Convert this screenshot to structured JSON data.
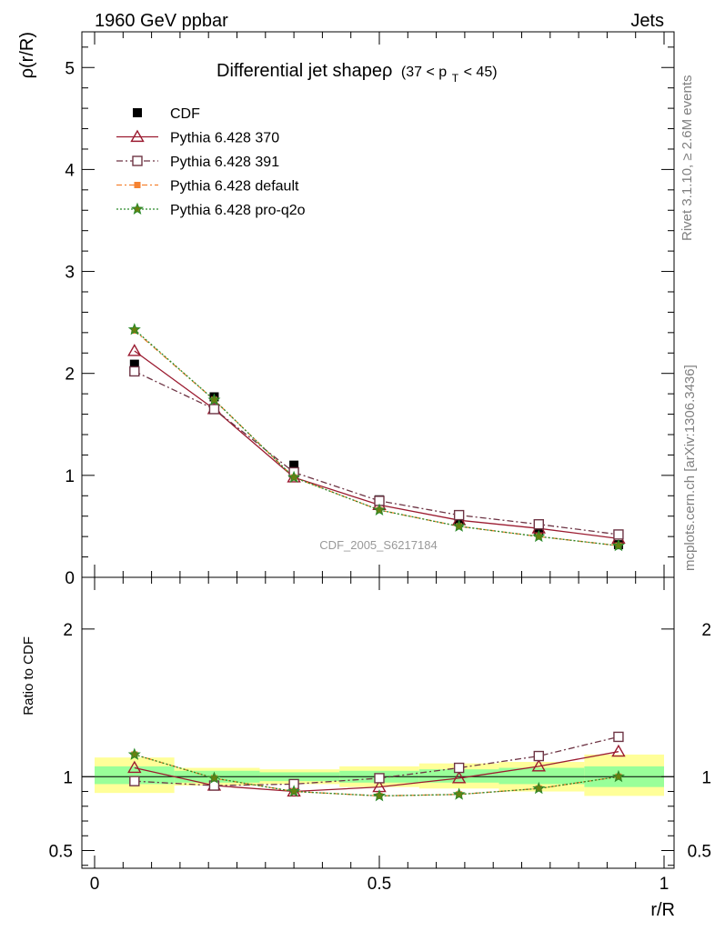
{
  "header": {
    "left": "1960 GeV ppbar",
    "right": "Jets"
  },
  "side_labels": {
    "rivet": "Rivet 3.1.10, ≥ 2.6M events",
    "mcplots": "mcplots.cern.ch [arXiv:1306.3436]"
  },
  "chart_data": [
    {
      "type": "line",
      "title": "Differential jet shapeρ",
      "title_suffix": "(37 < p",
      "title_subscript": "T",
      "title_tail": " < 45)",
      "xlabel": "",
      "ylabel": "ρ(r/R)",
      "xlim": [
        0,
        1
      ],
      "ylim": [
        0,
        5.35
      ],
      "yticks": [
        "0",
        "1",
        "2",
        "3",
        "4",
        "5"
      ],
      "watermark": "CDF_2005_S6217184",
      "x": [
        0.07,
        0.21,
        0.35,
        0.5,
        0.64,
        0.78,
        0.92
      ],
      "series": [
        {
          "name": "CDF",
          "marker": "square-filled",
          "color": "#000000",
          "values": [
            2.09,
            1.77,
            1.1,
            0.76,
            0.56,
            0.45,
            0.32
          ]
        },
        {
          "name": "Pythia 6.428 370",
          "marker": "triangle-open",
          "color": "#9b1b30",
          "dash": "",
          "values": [
            2.22,
            1.65,
            0.98,
            0.71,
            0.56,
            0.48,
            0.38
          ]
        },
        {
          "name": "Pythia 6.428 391",
          "marker": "square-open",
          "color": "#6e3545",
          "dash": "7,3,2,3",
          "values": [
            2.02,
            1.65,
            1.03,
            0.75,
            0.61,
            0.52,
            0.42
          ]
        },
        {
          "name": "Pythia 6.428 default",
          "marker": "square-filled-small",
          "color": "#f58231",
          "dash": "6,3,2,3",
          "values": [
            2.42,
            1.74,
            0.98,
            0.66,
            0.5,
            0.4,
            0.31
          ]
        },
        {
          "name": "Pythia 6.428 pro-q2o",
          "marker": "star",
          "color": "#2a8a2a",
          "dash": "2,2",
          "values": [
            2.43,
            1.74,
            0.98,
            0.66,
            0.5,
            0.4,
            0.31
          ]
        }
      ]
    },
    {
      "type": "line",
      "title": "",
      "xlabel": "r/R",
      "ylabel": "Ratio to CDF",
      "xlim": [
        0,
        1
      ],
      "ylim": [
        0.38,
        2.35
      ],
      "yticks": [
        "0.5",
        "1",
        "2"
      ],
      "xticks": [
        "0",
        "0.5",
        "1"
      ],
      "bands": [
        {
          "x0": 0.0,
          "x1": 0.14,
          "yellow": [
            0.89,
            1.13
          ],
          "green": [
            0.95,
            1.07
          ]
        },
        {
          "x0": 0.14,
          "x1": 0.29,
          "yellow": [
            0.94,
            1.06
          ],
          "green": [
            0.96,
            1.04
          ]
        },
        {
          "x0": 0.29,
          "x1": 0.43,
          "yellow": [
            0.95,
            1.05
          ],
          "green": [
            0.97,
            1.03
          ]
        },
        {
          "x0": 0.43,
          "x1": 0.57,
          "yellow": [
            0.93,
            1.07
          ],
          "green": [
            0.96,
            1.04
          ]
        },
        {
          "x0": 0.57,
          "x1": 0.71,
          "yellow": [
            0.92,
            1.09
          ],
          "green": [
            0.96,
            1.05
          ]
        },
        {
          "x0": 0.71,
          "x1": 0.86,
          "yellow": [
            0.9,
            1.1
          ],
          "green": [
            0.95,
            1.06
          ]
        },
        {
          "x0": 0.86,
          "x1": 1.0,
          "yellow": [
            0.87,
            1.15
          ],
          "green": [
            0.93,
            1.07
          ]
        }
      ],
      "x": [
        0.07,
        0.21,
        0.35,
        0.5,
        0.64,
        0.78,
        0.92
      ],
      "series": [
        {
          "name": "Pythia 6.428 370",
          "marker": "triangle-open",
          "color": "#9b1b30",
          "dash": "",
          "values": [
            1.06,
            0.94,
            0.9,
            0.93,
            0.99,
            1.07,
            1.17
          ]
        },
        {
          "name": "Pythia 6.428 391",
          "marker": "square-open",
          "color": "#6e3545",
          "dash": "7,3,2,3",
          "values": [
            0.97,
            0.94,
            0.95,
            0.99,
            1.06,
            1.14,
            1.27
          ]
        },
        {
          "name": "Pythia 6.428 default",
          "marker": "square-filled-small",
          "color": "#f58231",
          "dash": "6,3,2,3",
          "values": [
            1.15,
            0.99,
            0.9,
            0.87,
            0.88,
            0.92,
            1.0
          ]
        },
        {
          "name": "Pythia 6.428 pro-q2o",
          "marker": "star",
          "color": "#2a8a2a",
          "dash": "2,2",
          "values": [
            1.15,
            0.99,
            0.9,
            0.87,
            0.88,
            0.92,
            1.0
          ]
        }
      ]
    }
  ]
}
